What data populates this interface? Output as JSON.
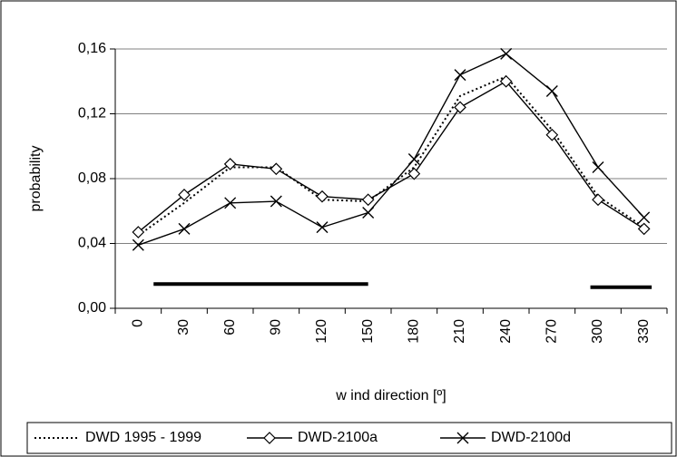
{
  "chart_data": {
    "type": "line",
    "x_label": "w ind direction [º]",
    "y_label": "probability",
    "categories": [
      "0",
      "30",
      "60",
      "90",
      "120",
      "150",
      "180",
      "210",
      "240",
      "270",
      "300",
      "330"
    ],
    "series": [
      {
        "name": "DWD 1995 - 1999",
        "color": "#000000",
        "style": "dotted",
        "marker": "none",
        "values": [
          0.045,
          0.065,
          0.087,
          0.087,
          0.067,
          0.066,
          0.087,
          0.131,
          0.143,
          0.11,
          0.069,
          0.05
        ]
      },
      {
        "name": "DWD-2100a",
        "color": "#000000",
        "style": "solid",
        "marker": "diamond",
        "values": [
          0.047,
          0.07,
          0.089,
          0.086,
          0.069,
          0.067,
          0.083,
          0.124,
          0.14,
          0.107,
          0.067,
          0.049
        ]
      },
      {
        "name": "DWD-2100d",
        "color": "#000000",
        "style": "solid",
        "marker": "cross",
        "values": [
          0.039,
          0.049,
          0.065,
          0.066,
          0.05,
          0.059,
          0.092,
          0.144,
          0.157,
          0.134,
          0.087,
          0.056
        ]
      }
    ],
    "range_lines": [
      {
        "from": 10,
        "to": 150,
        "value": 0.015
      },
      {
        "from": 295,
        "to": 335,
        "value": 0.013
      }
    ],
    "ylim": [
      0,
      0.16
    ],
    "yticks": [
      {
        "value": 0,
        "label": "0,00"
      },
      {
        "value": 0.04,
        "label": "0,04"
      },
      {
        "value": 0.08,
        "label": "0,08"
      },
      {
        "value": 0.12,
        "label": "0,12"
      },
      {
        "value": 0.16,
        "label": "0,16"
      }
    ],
    "grid": true,
    "legend": "bottom"
  }
}
